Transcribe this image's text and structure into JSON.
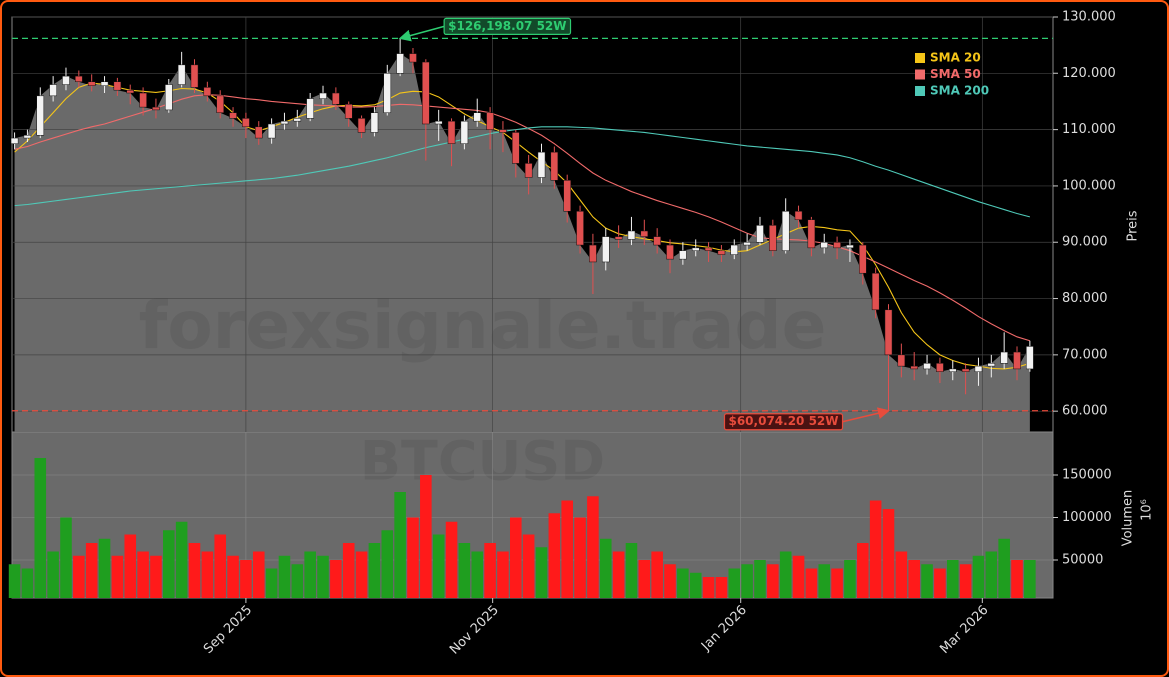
{
  "chart_data": {
    "type": "candlestick",
    "watermark": [
      "forexsignale.trade",
      "BTCUSD"
    ],
    "ylabel": "Preis",
    "y2label": "Volumen",
    "y2_scale_label": "10⁶",
    "ylim": [
      56300,
      130000
    ],
    "yticks": [
      {
        "value": 60000,
        "label": "60.000"
      },
      {
        "value": 70000,
        "label": "70.000"
      },
      {
        "value": 80000,
        "label": "80.000"
      },
      {
        "value": 90000,
        "label": "90.000"
      },
      {
        "value": 100000,
        "label": "100.000"
      },
      {
        "value": 110000,
        "label": "110.000"
      },
      {
        "value": 120000,
        "label": "120.000"
      },
      {
        "value": 130000,
        "label": "130.000"
      }
    ],
    "y2lim": [
      5300,
      200600
    ],
    "y2ticks": [
      50000,
      100000,
      150000
    ],
    "xlim": [
      -0.2,
      80.8
    ],
    "xticks": [
      {
        "value": 18,
        "label": "Sep 2025"
      },
      {
        "value": 37.2,
        "label": "Nov 2025"
      },
      {
        "value": 56.5,
        "label": "Jan 2026"
      },
      {
        "value": 75.3,
        "label": "Mar 2026"
      }
    ],
    "grid": true,
    "up_color": "#f2f2f2",
    "down_color": "#e05050",
    "volume_up_color": "#1f9e1f",
    "volume_down_color": "#ff1a1a",
    "area_color": "#6a6a6a",
    "open": [
      107500,
      108500,
      109000,
      116000,
      118000,
      119500,
      118500,
      117800,
      118500,
      117000,
      116500,
      114000,
      113500,
      118000,
      121500,
      117500,
      116000,
      113000,
      112000,
      110500,
      108500,
      111000,
      111500,
      112000,
      115500,
      116500,
      114500,
      112000,
      109500,
      113000,
      120000,
      123500,
      122000,
      111000,
      111500,
      107500,
      111500,
      113000,
      110000,
      109500,
      104000,
      101500,
      106000,
      101000,
      95500,
      89500,
      86500,
      91000,
      90500,
      92000,
      91000,
      89500,
      87000,
      88500,
      89000,
      88500,
      87800,
      89500,
      90000,
      93000,
      88500,
      95500,
      94000,
      89000,
      90000,
      89000,
      89500,
      84500,
      78000,
      70000,
      68000,
      67500,
      68500,
      67000,
      67500,
      67000,
      68000,
      68500,
      70500,
      67500
    ],
    "high": [
      109500,
      110000,
      117500,
      119500,
      121000,
      120500,
      119800,
      119500,
      119200,
      118000,
      117500,
      115500,
      119000,
      123800,
      122500,
      118500,
      117000,
      114000,
      113000,
      111500,
      112000,
      113000,
      113500,
      116500,
      117800,
      117500,
      115000,
      112500,
      114000,
      121500,
      126198.07,
      124500,
      122500,
      113500,
      112000,
      112500,
      115500,
      114000,
      111500,
      110000,
      105500,
      107500,
      107000,
      102000,
      96500,
      91500,
      92500,
      93000,
      94500,
      94000,
      92500,
      90500,
      90000,
      90500,
      90000,
      89500,
      90500,
      91500,
      94500,
      94000,
      97800,
      96500,
      94500,
      91500,
      91000,
      90500,
      90000,
      85500,
      79000,
      72000,
      70500,
      70000,
      69500,
      69000,
      68500,
      69500,
      70000,
      74000,
      71500,
      72500
    ],
    "low": [
      106500,
      107800,
      108500,
      115000,
      117000,
      117500,
      116800,
      116500,
      116000,
      114500,
      112500,
      112000,
      113000,
      117500,
      116500,
      115000,
      112000,
      110500,
      108500,
      107300,
      107500,
      110000,
      110500,
      111500,
      114500,
      113500,
      110500,
      108500,
      108800,
      112500,
      119500,
      120000,
      104500,
      108000,
      103500,
      106500,
      110500,
      106500,
      106000,
      101500,
      98500,
      100500,
      99500,
      93500,
      88000,
      80800,
      85000,
      89000,
      89500,
      89500,
      88000,
      84500,
      86000,
      87500,
      86500,
      86500,
      87000,
      88500,
      89500,
      87500,
      88000,
      92500,
      87500,
      88000,
      87000,
      86500,
      82500,
      76500,
      60074.2,
      66000,
      65500,
      66500,
      65000,
      65500,
      63000,
      64500,
      66000,
      67500,
      65500,
      67000
    ],
    "close": [
      108500,
      109000,
      116000,
      118000,
      119500,
      118500,
      117800,
      118500,
      117000,
      116500,
      114000,
      113500,
      118000,
      121500,
      117500,
      116000,
      113000,
      112000,
      110500,
      108500,
      111000,
      111500,
      112000,
      115500,
      116500,
      114500,
      112000,
      109500,
      113000,
      120000,
      123500,
      122000,
      111000,
      111500,
      107500,
      111500,
      113000,
      110000,
      109500,
      104000,
      101500,
      106000,
      101000,
      95500,
      89500,
      86500,
      91000,
      90500,
      92000,
      91000,
      89500,
      87000,
      88500,
      89000,
      88500,
      87800,
      89500,
      90000,
      93000,
      88500,
      95500,
      94000,
      89000,
      90000,
      89000,
      89500,
      84500,
      78000,
      70000,
      68000,
      67500,
      68500,
      67000,
      67500,
      67000,
      68000,
      68500,
      70500,
      67500,
      71500
    ],
    "volume": [
      45000,
      40000,
      170000,
      60000,
      100000,
      55000,
      70000,
      75000,
      55000,
      80000,
      60000,
      55000,
      85000,
      95000,
      70000,
      60000,
      80000,
      55000,
      50000,
      60000,
      40000,
      55000,
      45000,
      60000,
      55000,
      50000,
      70000,
      60000,
      70000,
      85000,
      130000,
      100000,
      150000,
      80000,
      95000,
      70000,
      60000,
      70000,
      60000,
      100000,
      80000,
      65000,
      105000,
      120000,
      100000,
      125000,
      75000,
      60000,
      70000,
      50000,
      60000,
      45000,
      40000,
      35000,
      30000,
      30000,
      40000,
      45000,
      50000,
      45000,
      60000,
      55000,
      40000,
      45000,
      40000,
      50000,
      70000,
      120000,
      110000,
      60000,
      50000,
      45000,
      40000,
      50000,
      45000,
      55000,
      60000,
      75000,
      50000,
      50000
    ],
    "series": [
      {
        "name": "SMA 20",
        "color": "#f5c518",
        "values": [
          106000,
          108000,
          110500,
          113000,
          115500,
          117500,
          118300,
          118000,
          117500,
          117000,
          116800,
          116600,
          116900,
          117300,
          117200,
          116500,
          115000,
          113000,
          110500,
          109800,
          110500,
          111300,
          112200,
          113000,
          113700,
          114200,
          114300,
          114200,
          114400,
          115300,
          116500,
          116800,
          116700,
          115800,
          114300,
          112800,
          111600,
          110500,
          109500,
          107800,
          106000,
          104300,
          102700,
          100500,
          97500,
          94500,
          92500,
          91500,
          91000,
          90600,
          90300,
          89900,
          89700,
          89400,
          89100,
          88600,
          88300,
          88500,
          89500,
          90500,
          91500,
          92500,
          92800,
          92600,
          92200,
          92000,
          89500,
          86000,
          82000,
          77500,
          74000,
          71800,
          70000,
          69000,
          68300,
          68000,
          67600,
          67500,
          67800,
          68500
        ]
      },
      {
        "name": "SMA 50",
        "color": "#f06a6a",
        "values": [
          106500,
          107000,
          107800,
          108500,
          109200,
          109900,
          110500,
          111000,
          111700,
          112400,
          113100,
          113800,
          114600,
          115400,
          116000,
          116200,
          116100,
          115800,
          115500,
          115300,
          115000,
          114800,
          114600,
          114400,
          114300,
          114200,
          114000,
          114000,
          114100,
          114300,
          114500,
          114400,
          114200,
          114000,
          113800,
          113600,
          113400,
          113000,
          112200,
          111300,
          110200,
          109000,
          107500,
          105800,
          104000,
          102300,
          101000,
          100000,
          99000,
          98200,
          97400,
          96700,
          96000,
          95300,
          94500,
          93600,
          92600,
          91600,
          90800,
          90600,
          90500,
          90400,
          90200,
          89800,
          89200,
          88500,
          87500,
          86500,
          85400,
          84300,
          83200,
          82200,
          81000,
          79700,
          78300,
          76800,
          75500,
          74300,
          73200,
          72500
        ]
      },
      {
        "name": "SMA 200",
        "color": "#4fc9b8",
        "values": [
          96500,
          96700,
          97000,
          97300,
          97600,
          97900,
          98200,
          98500,
          98800,
          99100,
          99300,
          99500,
          99700,
          99900,
          100100,
          100300,
          100500,
          100700,
          100900,
          101100,
          101300,
          101600,
          101900,
          102300,
          102700,
          103100,
          103500,
          104000,
          104500,
          105000,
          105600,
          106200,
          106800,
          107300,
          107800,
          108300,
          108800,
          109300,
          109700,
          110000,
          110300,
          110500,
          110500,
          110500,
          110400,
          110300,
          110100,
          109900,
          109700,
          109500,
          109200,
          108900,
          108600,
          108300,
          108000,
          107700,
          107400,
          107100,
          106900,
          106700,
          106500,
          106300,
          106100,
          105800,
          105500,
          105000,
          104300,
          103500,
          102800,
          102000,
          101200,
          100400,
          99600,
          98800,
          98000,
          97200,
          96500,
          95800,
          95100,
          94500
        ]
      }
    ],
    "legend": "upper right",
    "hlines": [
      {
        "value": 126198.07,
        "label": "$126,198.07 52W",
        "color": "#2ecc71",
        "at": 30
      },
      {
        "value": 60074.2,
        "label": "$60,074.20 52W",
        "color": "#e74c3c",
        "at": 68
      }
    ]
  }
}
